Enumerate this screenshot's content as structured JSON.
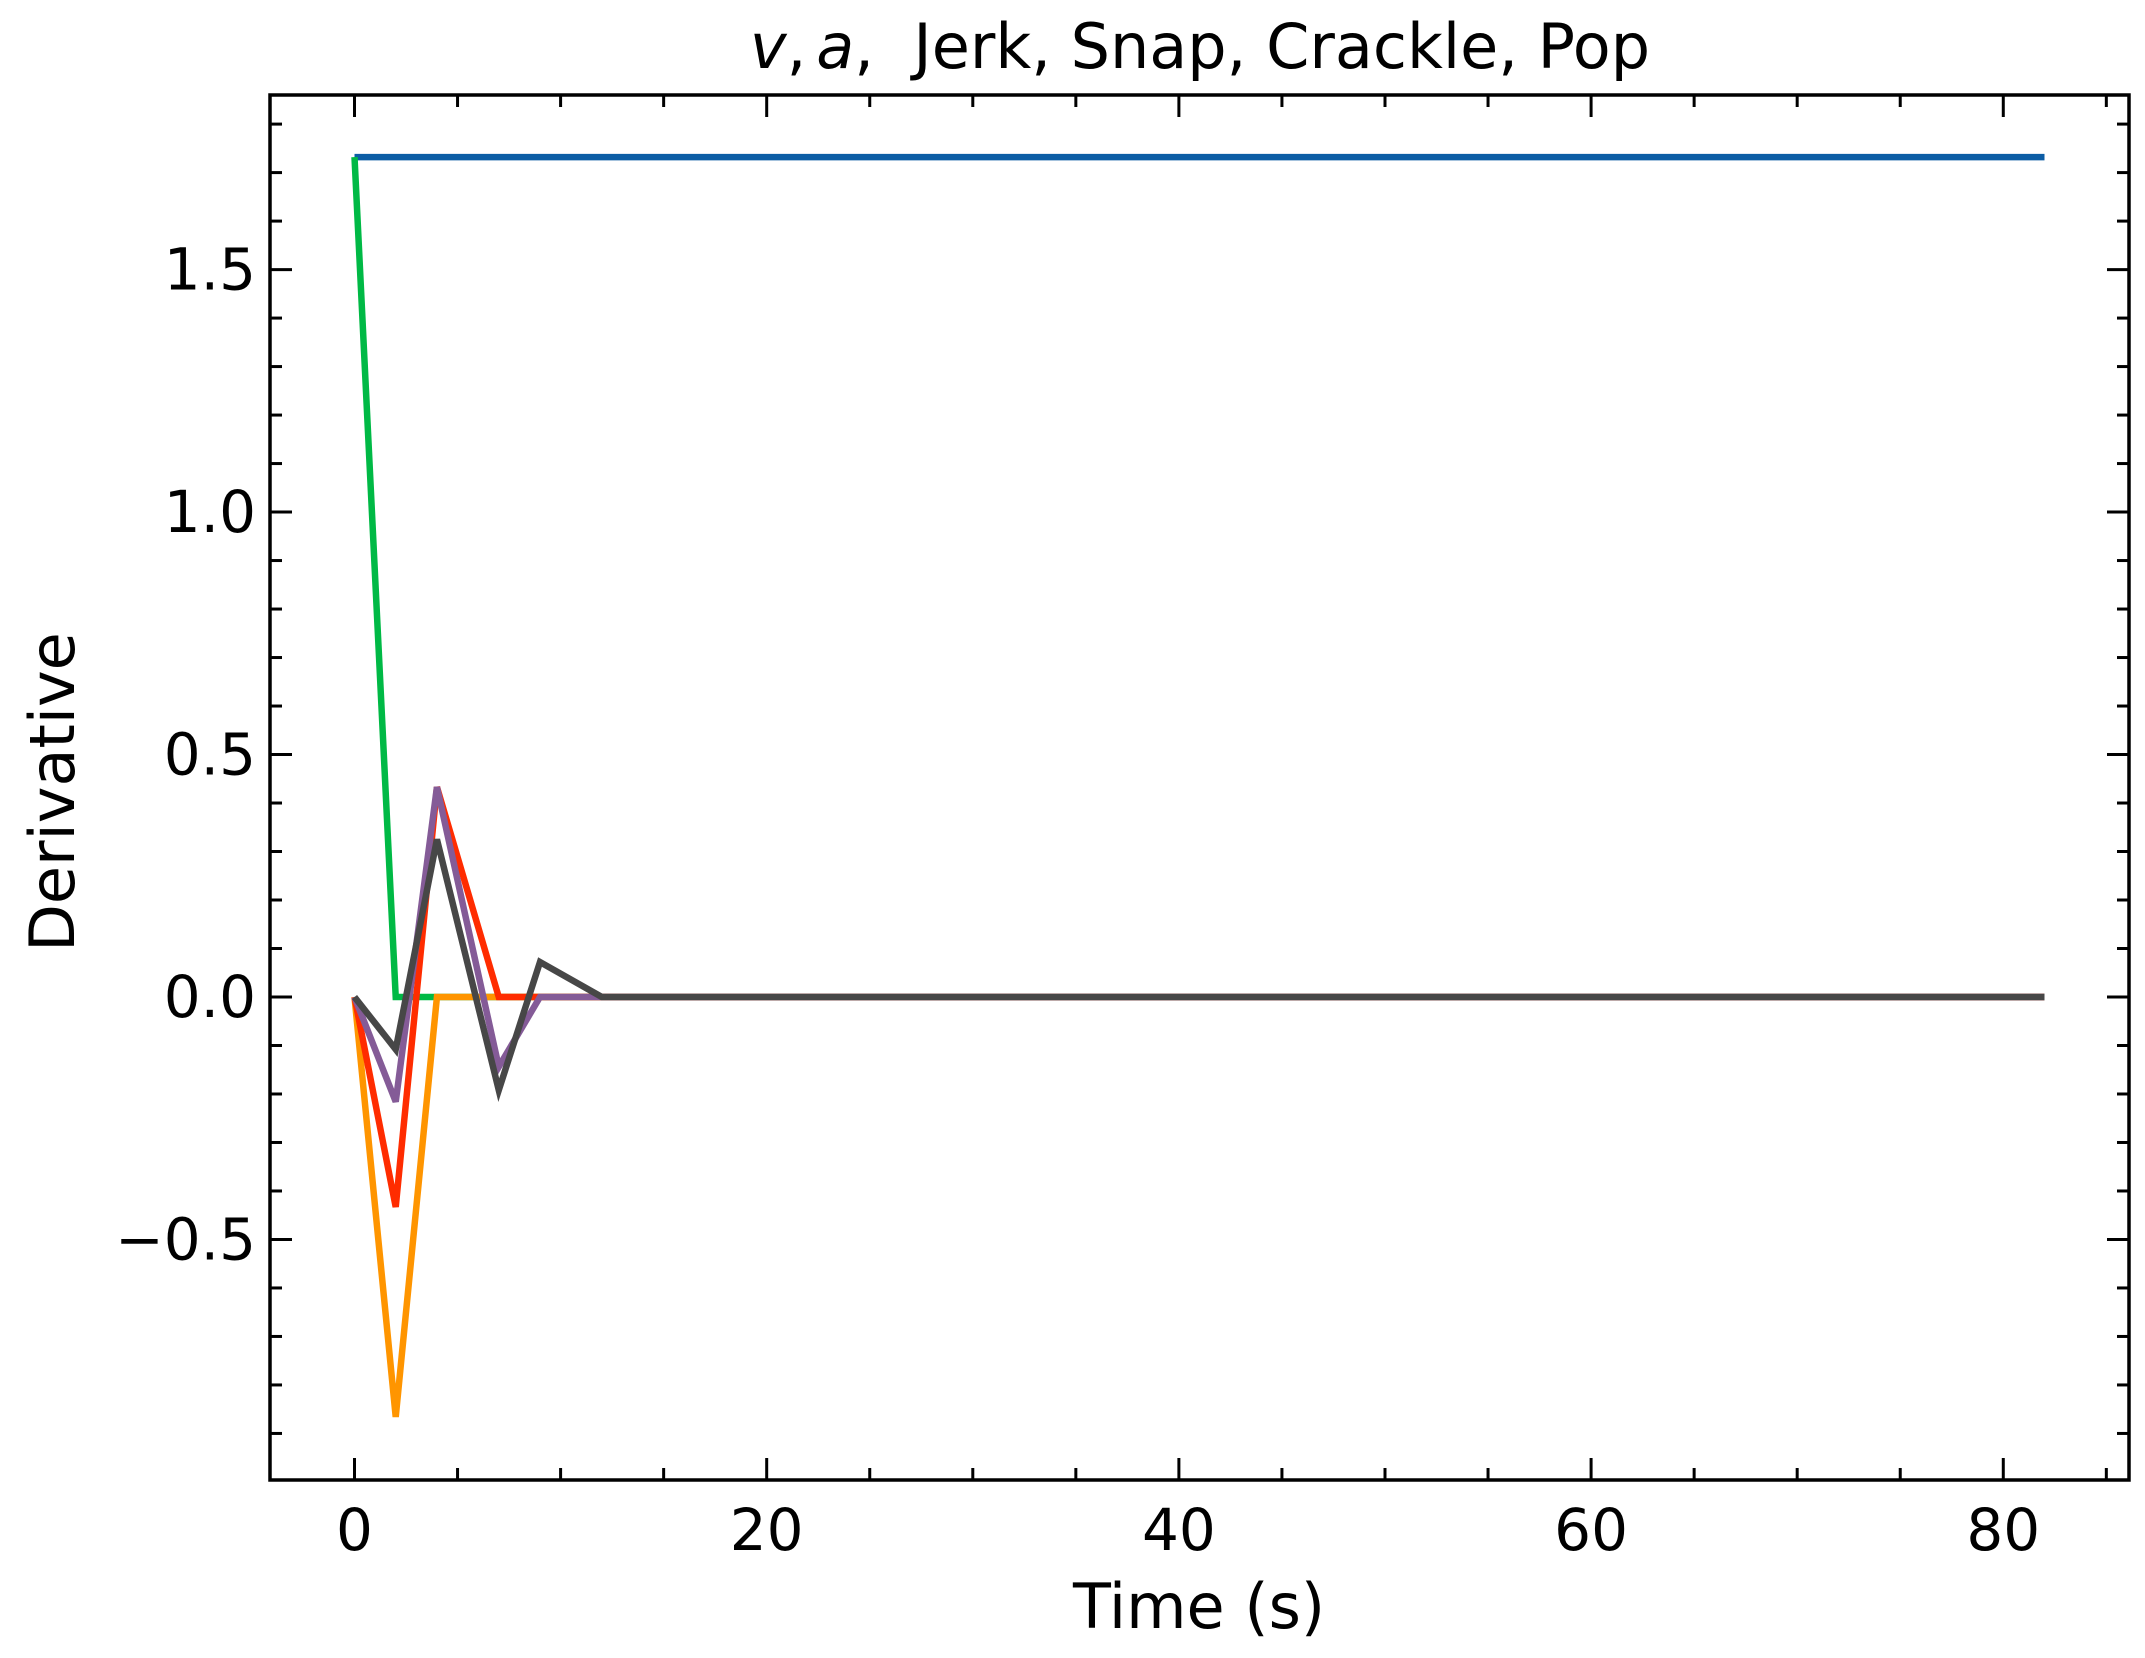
{
  "chart_data": {
    "type": "line",
    "title": {
      "math_v": "v",
      "comma1": ",",
      "math_a": "a",
      "rest": ",  Jerk, Snap, Crackle, Pop"
    },
    "xlabel": "Time (s)",
    "ylabel": "Derivative",
    "xlim": [
      -4.1,
      86.1
    ],
    "ylim": [
      -0.996,
      1.86
    ],
    "xticks": [
      0,
      20,
      40,
      60,
      80
    ],
    "xtick_labels": [
      "0",
      "20",
      "40",
      "60",
      "80"
    ],
    "x_minor_step": 5,
    "yticks": [
      -0.5,
      0.0,
      0.5,
      1.0,
      1.5
    ],
    "ytick_labels": [
      "−0.5",
      "0.0",
      "0.5",
      "1.0",
      "1.5"
    ],
    "y_minor_step": 0.1,
    "grid": false,
    "legend": "none",
    "series": [
      {
        "color": "#0C5DA5",
        "x": [
          0,
          82
        ],
        "y": [
          1.732,
          1.732
        ]
      },
      {
        "color": "#00B945",
        "x": [
          0,
          2,
          82
        ],
        "y": [
          1.732,
          0.0,
          0.0
        ]
      },
      {
        "color": "#FF9500",
        "x": [
          0,
          2,
          4,
          82
        ],
        "y": [
          0.0,
          -0.866,
          0.0,
          0.0
        ]
      },
      {
        "color": "#FF2C00",
        "x": [
          0,
          2,
          4,
          7,
          82
        ],
        "y": [
          0.0,
          -0.433,
          0.433,
          0.0,
          0.0
        ]
      },
      {
        "color": "#845B97",
        "x": [
          0,
          2,
          4,
          7,
          9,
          82
        ],
        "y": [
          0.0,
          -0.216,
          0.433,
          -0.144,
          0.0,
          0.0
        ]
      },
      {
        "color": "#474747",
        "x": [
          0,
          2,
          4,
          7,
          9,
          12,
          82
        ],
        "y": [
          0.0,
          -0.108,
          0.325,
          -0.192,
          0.072,
          0.0,
          0.0
        ]
      }
    ]
  }
}
